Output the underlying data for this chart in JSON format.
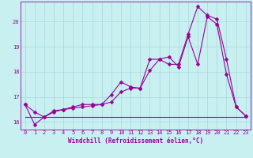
{
  "xlabel": "Windchill (Refroidissement éolien,°C)",
  "background_color": "#c8f0f0",
  "grid_color": "#a8d8d8",
  "line_color": "#990099",
  "xlim": [
    -0.5,
    23.5
  ],
  "ylim": [
    15.7,
    20.8
  ],
  "xticks": [
    0,
    1,
    2,
    3,
    4,
    5,
    6,
    7,
    8,
    9,
    10,
    11,
    12,
    13,
    14,
    15,
    16,
    17,
    18,
    19,
    20,
    21,
    22,
    23
  ],
  "yticks": [
    16,
    17,
    18,
    19,
    20
  ],
  "series1_x": [
    0,
    1,
    2,
    3,
    4,
    5,
    6,
    7,
    8,
    9,
    10,
    11,
    12,
    13,
    14,
    15,
    16,
    17,
    18,
    19,
    20,
    21,
    22,
    23
  ],
  "series1_y": [
    16.7,
    15.9,
    16.2,
    16.4,
    16.5,
    16.55,
    16.6,
    16.65,
    16.7,
    16.8,
    17.2,
    17.35,
    17.35,
    18.05,
    18.5,
    18.6,
    18.2,
    19.4,
    18.3,
    20.2,
    19.9,
    17.9,
    16.6,
    16.25
  ],
  "series2_x": [
    0,
    1,
    2,
    3,
    4,
    5,
    6,
    7,
    8,
    9,
    10,
    11,
    12,
    13,
    14,
    15,
    16,
    17,
    18,
    19,
    20,
    21,
    22,
    23
  ],
  "series2_y": [
    16.7,
    16.4,
    16.2,
    16.45,
    16.5,
    16.6,
    16.7,
    16.7,
    16.7,
    17.1,
    17.6,
    17.4,
    17.35,
    18.5,
    18.5,
    18.3,
    18.3,
    19.5,
    20.6,
    20.25,
    20.1,
    18.5,
    16.6,
    16.25
  ],
  "series3_x": [
    0,
    10,
    15,
    19,
    23
  ],
  "series3_y": [
    16.2,
    16.2,
    16.2,
    16.2,
    16.2
  ],
  "marker_size": 2.5,
  "line_width": 0.8,
  "tick_labelsize": 5,
  "xlabel_fontsize": 5.5
}
